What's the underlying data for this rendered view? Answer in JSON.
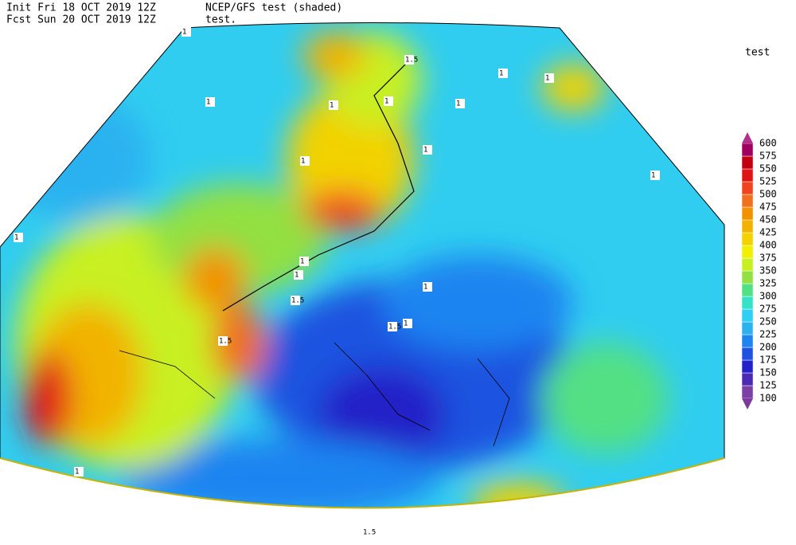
{
  "header": {
    "init": "Init  Fri 18 OCT 2019 12Z",
    "fcst": "Fcst Sun 20 OCT 2019 12Z",
    "title": "NCEP/GFS test (shaded)",
    "subtitle": "test."
  },
  "colorbar": {
    "title": "test",
    "levels": [
      100,
      125,
      150,
      175,
      200,
      225,
      250,
      275,
      300,
      325,
      350,
      375,
      400,
      425,
      450,
      475,
      500,
      525,
      550,
      575,
      600
    ],
    "colors": [
      "#7b3fa6",
      "#4a2ab4",
      "#2222c8",
      "#1e52e0",
      "#1e84f0",
      "#2cb2f0",
      "#2ecff2",
      "#34e2c8",
      "#52e084",
      "#92e042",
      "#c8f020",
      "#f0f000",
      "#f2d200",
      "#f2b200",
      "#f29200",
      "#f07020",
      "#f04420",
      "#e01414",
      "#c20010",
      "#a00060"
    ],
    "under_color": "#7d3a9c",
    "over_color": "#b0308a"
  },
  "contour_labels": [
    "1",
    "1",
    "1",
    "1",
    "1",
    "1",
    "1",
    "1",
    "1",
    "1",
    "1",
    "1",
    "1",
    "1",
    "1",
    "1",
    "1.5",
    "1.5",
    "1.5",
    "1.5",
    "1.5"
  ]
}
